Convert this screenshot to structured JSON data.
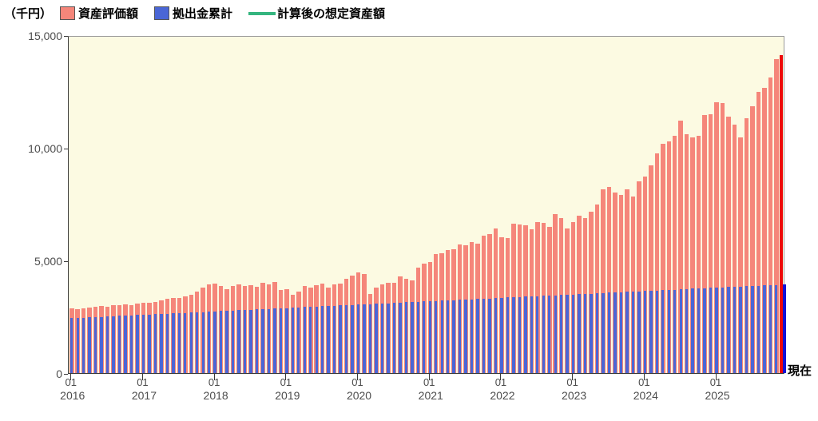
{
  "unit_label": "（千円）",
  "current_label": "現在",
  "legend": [
    {
      "label": "資産評価額",
      "swatch": "square",
      "color": "#F5867A"
    },
    {
      "label": "拠出金累計",
      "swatch": "square",
      "color": "#4A66D6"
    },
    {
      "label": "計算後の想定資産額",
      "swatch": "line",
      "color": "#35B57F"
    }
  ],
  "colors": {
    "plot_background": "#FCFAE2",
    "asset_bar": "#F5867A",
    "contribution_bar": "#4A66D6",
    "current_asset_bar": "#EE0808",
    "current_contribution_bar": "#1212D6",
    "expected_line": "#35B57F",
    "axis": "#3a3a3a",
    "plot_border": "#9a9a9a",
    "tick_text": "#4d4d4d"
  },
  "chart_data": {
    "type": "bar",
    "title": "",
    "xlabel": "",
    "ylabel": "（千円）",
    "ylim": [
      0,
      15000
    ],
    "y_ticks": [
      0,
      5000,
      10000,
      15000
    ],
    "y_tick_labels": [
      "0",
      "5,000",
      "10,000",
      "15,000"
    ],
    "grid": false,
    "legend_position": "top-left",
    "x_start": "2016-01",
    "x_months": 120,
    "x_tick_month_label": "01",
    "x_tick_years": [
      "2016",
      "2017",
      "2018",
      "2019",
      "2020",
      "2021",
      "2022",
      "2023",
      "2024",
      "2025"
    ],
    "current_month_index": 119,
    "series": [
      {
        "name": "資産評価額",
        "values": [
          2900,
          2840,
          2870,
          2915,
          2960,
          3000,
          2960,
          3040,
          3040,
          3060,
          3040,
          3090,
          3120,
          3120,
          3180,
          3240,
          3320,
          3360,
          3360,
          3420,
          3480,
          3620,
          3800,
          3950,
          4010,
          3890,
          3740,
          3890,
          3950,
          3890,
          3930,
          3860,
          4040,
          3950,
          4070,
          3710,
          3750,
          3480,
          3620,
          3890,
          3810,
          3930,
          4010,
          3830,
          3970,
          4010,
          4190,
          4360,
          4480,
          4420,
          3540,
          3830,
          3950,
          4040,
          4040,
          4300,
          4190,
          4130,
          4720,
          4900,
          4960,
          5300,
          5340,
          5480,
          5520,
          5740,
          5690,
          5840,
          5760,
          6140,
          6200,
          6460,
          6050,
          6020,
          6670,
          6640,
          6610,
          6410,
          6730,
          6690,
          6530,
          7080,
          6910,
          6460,
          6730,
          7020,
          6930,
          7200,
          7520,
          8200,
          8300,
          8060,
          7940,
          8210,
          7890,
          8570,
          8750,
          9280,
          9790,
          10230,
          10350,
          10590,
          11250,
          10650,
          10510,
          10590,
          11510,
          11540,
          12080,
          12040,
          11430,
          11070,
          10530,
          11360,
          11900,
          12550,
          12730,
          13200,
          14000,
          14170
        ]
      },
      {
        "name": "拠出金累計",
        "values": [
          2450,
          2463,
          2475,
          2488,
          2500,
          2513,
          2526,
          2538,
          2551,
          2563,
          2576,
          2589,
          2601,
          2614,
          2626,
          2639,
          2652,
          2664,
          2677,
          2689,
          2702,
          2715,
          2727,
          2740,
          2753,
          2765,
          2778,
          2790,
          2803,
          2816,
          2828,
          2841,
          2853,
          2866,
          2879,
          2891,
          2904,
          2916,
          2929,
          2942,
          2954,
          2967,
          2979,
          2992,
          3005,
          3017,
          3030,
          3042,
          3055,
          3068,
          3080,
          3093,
          3105,
          3118,
          3131,
          3143,
          3156,
          3168,
          3181,
          3194,
          3206,
          3219,
          3231,
          3244,
          3257,
          3269,
          3282,
          3294,
          3307,
          3320,
          3332,
          3345,
          3357,
          3370,
          3383,
          3395,
          3408,
          3420,
          3433,
          3446,
          3458,
          3471,
          3483,
          3496,
          3509,
          3521,
          3534,
          3546,
          3559,
          3572,
          3584,
          3597,
          3609,
          3622,
          3635,
          3647,
          3660,
          3672,
          3685,
          3698,
          3710,
          3723,
          3735,
          3748,
          3761,
          3773,
          3786,
          3798,
          3811,
          3824,
          3836,
          3849,
          3861,
          3874,
          3887,
          3899,
          3912,
          3924,
          3937,
          3950
        ]
      },
      {
        "name": "計算後の想定資産額",
        "type": "line",
        "visible_in_plot": false,
        "values": []
      }
    ]
  }
}
